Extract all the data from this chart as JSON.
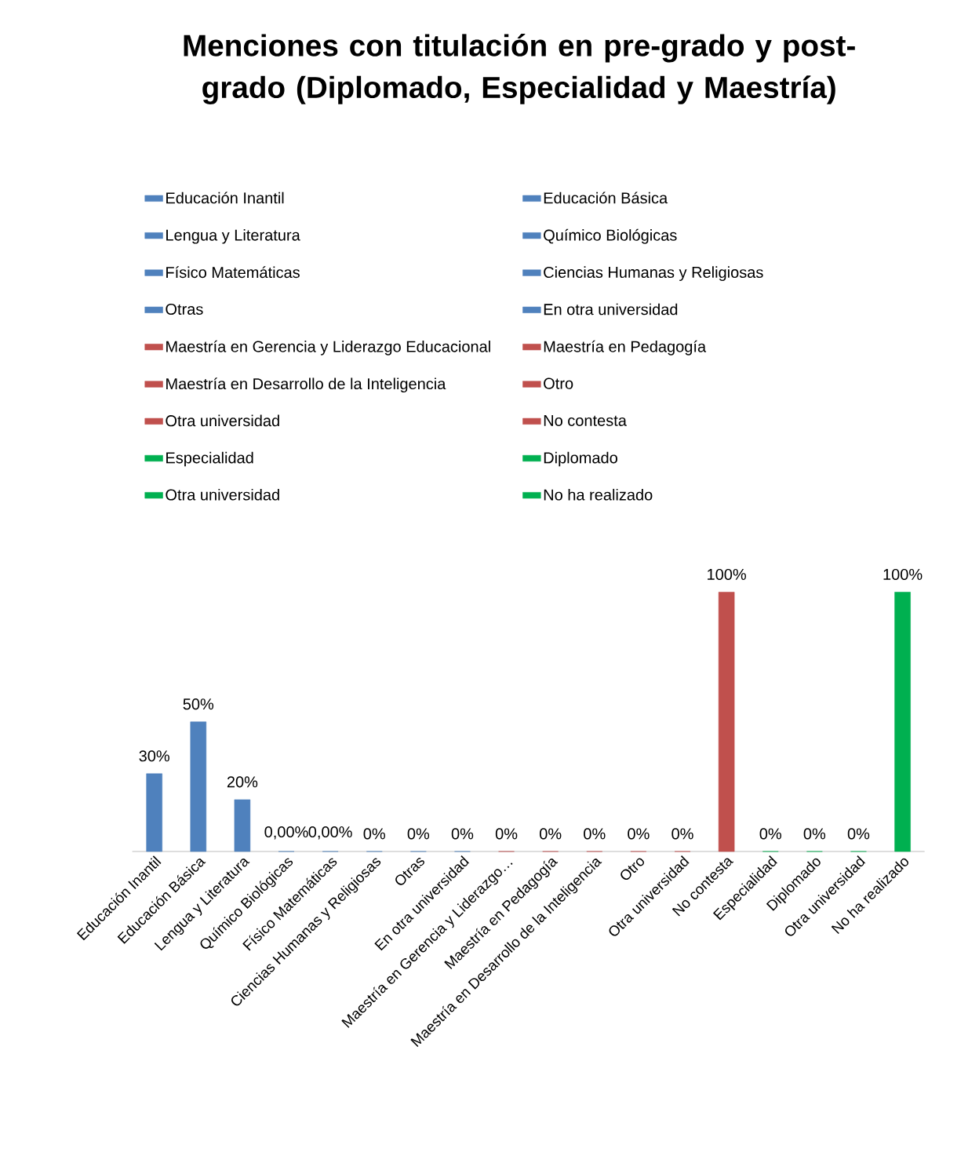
{
  "chart_data": {
    "type": "bar",
    "title": "Menciones con titulación en pre-grado y post-grado (Diplomado, Especialidad y Maestría)",
    "categories": [
      "Educación Inantil",
      "Educación Básica",
      "Lengua y Literatura",
      "Químico Biológicas",
      "Físico Matemáticas",
      "Ciencias Humanas y Religiosas",
      "Otras",
      "En otra universidad",
      "Maestría en Gerencia y Liderazgo…",
      "Maestría en Pedagogía",
      "Maestría en Desarrollo de la Inteligencia",
      "Otro",
      "Otra universidad",
      "No contesta",
      "Especialidad",
      "Diplomado",
      "Otra universidad",
      "No ha realizado"
    ],
    "series": [
      {
        "name": "Educación Inantil",
        "color": "#4f81bd",
        "values": [
          30,
          null,
          null,
          null,
          null,
          null,
          null,
          null,
          null,
          null,
          null,
          null,
          null,
          null,
          null,
          null,
          null,
          null
        ],
        "value_labels": [
          "30%",
          null,
          null,
          null,
          null,
          null,
          null,
          null,
          null,
          null,
          null,
          null,
          null,
          null,
          null,
          null,
          null,
          null
        ]
      },
      {
        "name": "Educación Básica",
        "color": "#4f81bd",
        "values": [
          null,
          50,
          null,
          null,
          null,
          null,
          null,
          null,
          null,
          null,
          null,
          null,
          null,
          null,
          null,
          null,
          null,
          null
        ],
        "value_labels": [
          null,
          "50%",
          null,
          null,
          null,
          null,
          null,
          null,
          null,
          null,
          null,
          null,
          null,
          null,
          null,
          null,
          null,
          null
        ]
      },
      {
        "name": "Lengua y Literatura",
        "color": "#4f81bd",
        "values": [
          null,
          null,
          20,
          null,
          null,
          null,
          null,
          null,
          null,
          null,
          null,
          null,
          null,
          null,
          null,
          null,
          null,
          null
        ],
        "value_labels": [
          null,
          null,
          "20%",
          null,
          null,
          null,
          null,
          null,
          null,
          null,
          null,
          null,
          null,
          null,
          null,
          null,
          null,
          null
        ]
      },
      {
        "name": "Químico Biológicas",
        "color": "#4f81bd",
        "values": [
          null,
          null,
          null,
          0,
          null,
          null,
          null,
          null,
          null,
          null,
          null,
          null,
          null,
          null,
          null,
          null,
          null,
          null
        ],
        "value_labels": [
          null,
          null,
          null,
          "0,00%",
          null,
          null,
          null,
          null,
          null,
          null,
          null,
          null,
          null,
          null,
          null,
          null,
          null,
          null
        ]
      },
      {
        "name": "Físico Matemáticas",
        "color": "#4f81bd",
        "values": [
          null,
          null,
          null,
          null,
          0,
          null,
          null,
          null,
          null,
          null,
          null,
          null,
          null,
          null,
          null,
          null,
          null,
          null
        ],
        "value_labels": [
          null,
          null,
          null,
          null,
          "0,00%",
          null,
          null,
          null,
          null,
          null,
          null,
          null,
          null,
          null,
          null,
          null,
          null,
          null
        ]
      },
      {
        "name": "Ciencias Humanas y Religiosas",
        "color": "#4f81bd",
        "values": [
          null,
          null,
          null,
          null,
          null,
          0,
          null,
          null,
          null,
          null,
          null,
          null,
          null,
          null,
          null,
          null,
          null,
          null
        ],
        "value_labels": [
          null,
          null,
          null,
          null,
          null,
          "0%",
          null,
          null,
          null,
          null,
          null,
          null,
          null,
          null,
          null,
          null,
          null,
          null
        ]
      },
      {
        "name": "Otras",
        "color": "#4f81bd",
        "values": [
          null,
          null,
          null,
          null,
          null,
          null,
          0,
          null,
          null,
          null,
          null,
          null,
          null,
          null,
          null,
          null,
          null,
          null
        ],
        "value_labels": [
          null,
          null,
          null,
          null,
          null,
          null,
          "0%",
          null,
          null,
          null,
          null,
          null,
          null,
          null,
          null,
          null,
          null,
          null
        ]
      },
      {
        "name": "En otra universidad",
        "color": "#4f81bd",
        "values": [
          null,
          null,
          null,
          null,
          null,
          null,
          null,
          0,
          null,
          null,
          null,
          null,
          null,
          null,
          null,
          null,
          null,
          null
        ],
        "value_labels": [
          null,
          null,
          null,
          null,
          null,
          null,
          null,
          "0%",
          null,
          null,
          null,
          null,
          null,
          null,
          null,
          null,
          null,
          null
        ]
      },
      {
        "name": "Maestría en Gerencia y Liderazgo Educacional",
        "color": "#c0504d",
        "values": [
          null,
          null,
          null,
          null,
          null,
          null,
          null,
          null,
          0,
          null,
          null,
          null,
          null,
          null,
          null,
          null,
          null,
          null
        ],
        "value_labels": [
          null,
          null,
          null,
          null,
          null,
          null,
          null,
          null,
          "0%",
          null,
          null,
          null,
          null,
          null,
          null,
          null,
          null,
          null
        ]
      },
      {
        "name": "Maestría en Pedagogía",
        "color": "#c0504d",
        "values": [
          null,
          null,
          null,
          null,
          null,
          null,
          null,
          null,
          null,
          0,
          null,
          null,
          null,
          null,
          null,
          null,
          null,
          null
        ],
        "value_labels": [
          null,
          null,
          null,
          null,
          null,
          null,
          null,
          null,
          null,
          "0%",
          null,
          null,
          null,
          null,
          null,
          null,
          null,
          null
        ]
      },
      {
        "name": "Maestría en Desarrollo de la Inteligencia",
        "color": "#c0504d",
        "values": [
          null,
          null,
          null,
          null,
          null,
          null,
          null,
          null,
          null,
          null,
          0,
          null,
          null,
          null,
          null,
          null,
          null,
          null
        ],
        "value_labels": [
          null,
          null,
          null,
          null,
          null,
          null,
          null,
          null,
          null,
          null,
          "0%",
          null,
          null,
          null,
          null,
          null,
          null,
          null
        ]
      },
      {
        "name": "Otro",
        "color": "#c0504d",
        "values": [
          null,
          null,
          null,
          null,
          null,
          null,
          null,
          null,
          null,
          null,
          null,
          0,
          null,
          null,
          null,
          null,
          null,
          null
        ],
        "value_labels": [
          null,
          null,
          null,
          null,
          null,
          null,
          null,
          null,
          null,
          null,
          null,
          "0%",
          null,
          null,
          null,
          null,
          null,
          null
        ]
      },
      {
        "name": "Otra universidad",
        "color": "#c0504d",
        "values": [
          null,
          null,
          null,
          null,
          null,
          null,
          null,
          null,
          null,
          null,
          null,
          null,
          0,
          null,
          null,
          null,
          null,
          null
        ],
        "value_labels": [
          null,
          null,
          null,
          null,
          null,
          null,
          null,
          null,
          null,
          null,
          null,
          null,
          "0%",
          null,
          null,
          null,
          null,
          null
        ]
      },
      {
        "name": "No contesta",
        "color": "#c0504d",
        "values": [
          null,
          null,
          null,
          null,
          null,
          null,
          null,
          null,
          null,
          null,
          null,
          null,
          null,
          100,
          null,
          null,
          null,
          null
        ],
        "value_labels": [
          null,
          null,
          null,
          null,
          null,
          null,
          null,
          null,
          null,
          null,
          null,
          null,
          null,
          "100%",
          null,
          null,
          null,
          null
        ]
      },
      {
        "name": "Especialidad",
        "color": "#00b050",
        "values": [
          null,
          null,
          null,
          null,
          null,
          null,
          null,
          null,
          null,
          null,
          null,
          null,
          null,
          null,
          0,
          null,
          null,
          null
        ],
        "value_labels": [
          null,
          null,
          null,
          null,
          null,
          null,
          null,
          null,
          null,
          null,
          null,
          null,
          null,
          null,
          "0%",
          null,
          null,
          null
        ]
      },
      {
        "name": "Diplomado",
        "color": "#00b050",
        "values": [
          null,
          null,
          null,
          null,
          null,
          null,
          null,
          null,
          null,
          null,
          null,
          null,
          null,
          null,
          null,
          0,
          null,
          null
        ],
        "value_labels": [
          null,
          null,
          null,
          null,
          null,
          null,
          null,
          null,
          null,
          null,
          null,
          null,
          null,
          null,
          null,
          "0%",
          null,
          null
        ]
      },
      {
        "name": "Otra universidad",
        "color": "#00b050",
        "values": [
          null,
          null,
          null,
          null,
          null,
          null,
          null,
          null,
          null,
          null,
          null,
          null,
          null,
          null,
          null,
          null,
          0,
          null
        ],
        "value_labels": [
          null,
          null,
          null,
          null,
          null,
          null,
          null,
          null,
          null,
          null,
          null,
          null,
          null,
          null,
          null,
          null,
          "0%",
          null
        ]
      },
      {
        "name": "No ha realizado",
        "color": "#00b050",
        "values": [
          null,
          null,
          null,
          null,
          null,
          null,
          null,
          null,
          null,
          null,
          null,
          null,
          null,
          null,
          null,
          null,
          null,
          100
        ],
        "value_labels": [
          null,
          null,
          null,
          null,
          null,
          null,
          null,
          null,
          null,
          null,
          null,
          null,
          null,
          null,
          null,
          null,
          null,
          "100%"
        ]
      }
    ],
    "legend": "top"
  }
}
